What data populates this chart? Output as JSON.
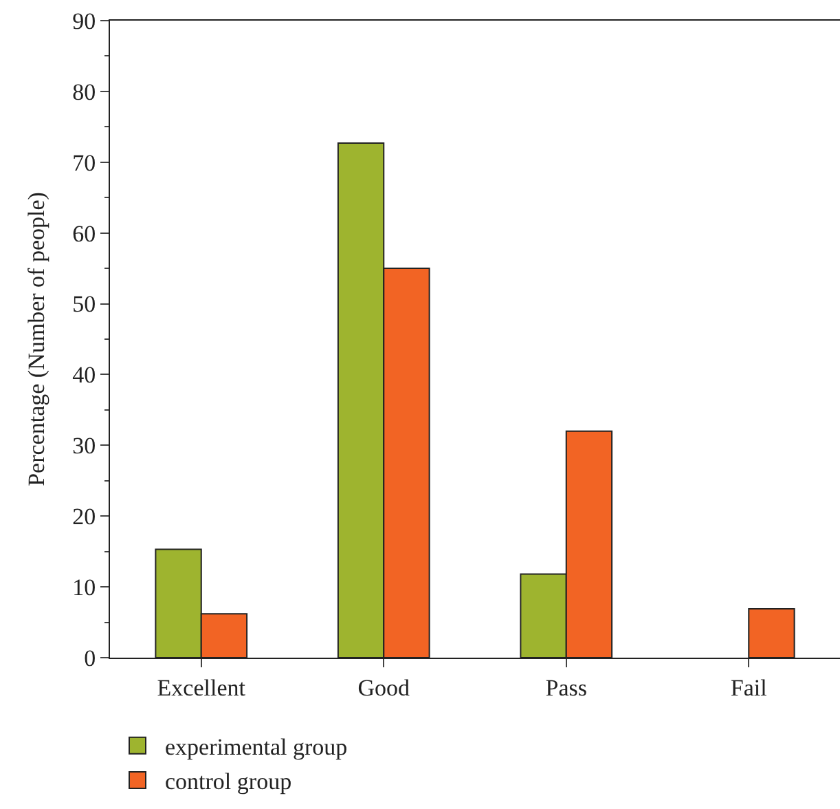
{
  "chart_data": {
    "type": "bar",
    "ylabel": "Percentage (Number of people)",
    "categories": [
      "Excellent",
      "Good",
      "Pass",
      "Fail"
    ],
    "series": [
      {
        "name": "experimental group",
        "color": "#9eb42f",
        "values": [
          15.3,
          72.7,
          11.8,
          null
        ]
      },
      {
        "name": "control group",
        "color": "#f26424",
        "values": [
          6.2,
          55,
          32,
          6.9
        ]
      }
    ],
    "ylim": [
      0,
      90
    ],
    "yticks": [
      0,
      10,
      20,
      30,
      40,
      50,
      60,
      70,
      80,
      90
    ],
    "legend": "bottom left"
  }
}
